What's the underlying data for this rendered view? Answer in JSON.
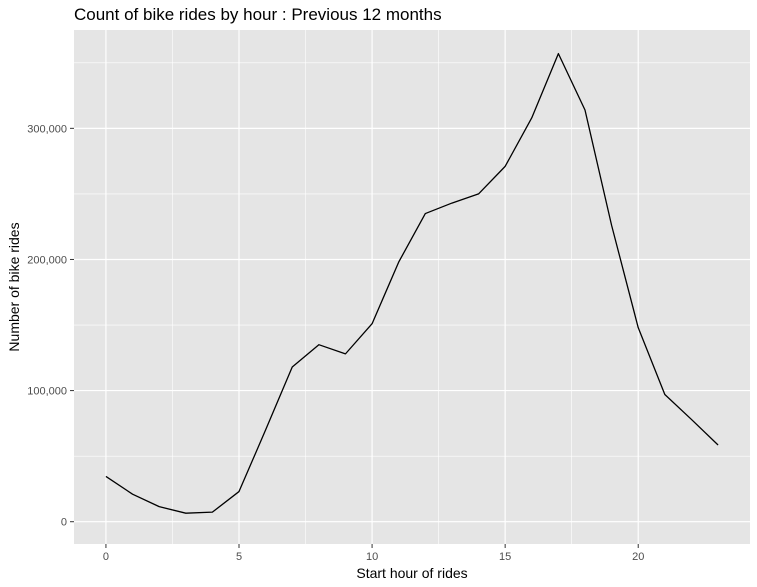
{
  "chart_data": {
    "type": "line",
    "title": "Count of bike rides by hour : Previous 12 months",
    "xlabel": "Start hour of rides",
    "ylabel": "Number of bike rides",
    "xlim": [
      -1.2,
      24.2
    ],
    "ylim": [
      -17000,
      375000
    ],
    "x_ticks": [
      0,
      5,
      10,
      15,
      20
    ],
    "x_tick_labels": [
      "0",
      "5",
      "10",
      "15",
      "20"
    ],
    "y_ticks": [
      0,
      100000,
      200000,
      300000
    ],
    "y_tick_labels": [
      "0",
      "100,000",
      "200,000",
      "300,000"
    ],
    "grid": true,
    "background_color": "#e5e5e5",
    "grid_color": "#ffffff",
    "line_color": "#000000",
    "series": [
      {
        "x": [
          0,
          1,
          2,
          3,
          4,
          5,
          6,
          7,
          8,
          9,
          10,
          11,
          12,
          13,
          14,
          15,
          16,
          17,
          18,
          19,
          20,
          21,
          22,
          23
        ],
        "values": [
          34500,
          21000,
          11500,
          6500,
          7300,
          23000,
          70000,
          118000,
          135000,
          128000,
          151000,
          198000,
          235000,
          243000,
          250000,
          271000,
          308000,
          357000,
          314000,
          226000,
          148000,
          97000,
          78000,
          58500
        ]
      }
    ]
  }
}
